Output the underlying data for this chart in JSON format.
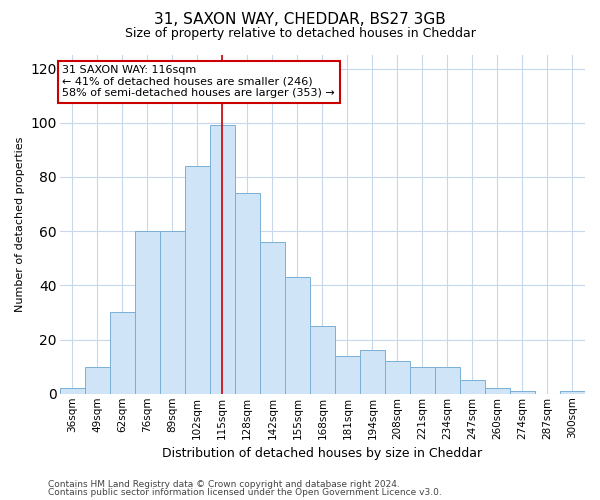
{
  "title1": "31, SAXON WAY, CHEDDAR, BS27 3GB",
  "title2": "Size of property relative to detached houses in Cheddar",
  "xlabel": "Distribution of detached houses by size in Cheddar",
  "ylabel": "Number of detached properties",
  "categories": [
    "36sqm",
    "49sqm",
    "62sqm",
    "76sqm",
    "89sqm",
    "102sqm",
    "115sqm",
    "128sqm",
    "142sqm",
    "155sqm",
    "168sqm",
    "181sqm",
    "194sqm",
    "208sqm",
    "221sqm",
    "234sqm",
    "247sqm",
    "260sqm",
    "274sqm",
    "287sqm",
    "300sqm"
  ],
  "values": [
    2,
    10,
    30,
    60,
    60,
    84,
    99,
    74,
    56,
    43,
    25,
    14,
    16,
    12,
    10,
    10,
    5,
    2,
    1,
    0,
    1
  ],
  "bar_color": "#d0e4f7",
  "bar_edge_color": "#7aafd4",
  "vline_x_idx": 6,
  "vline_color": "#cc0000",
  "annotation_line1": "31 SAXON WAY: 116sqm",
  "annotation_line2": "← 41% of detached houses are smaller (246)",
  "annotation_line3": "58% of semi-detached houses are larger (353) →",
  "annotation_box_color": "white",
  "annotation_box_edge": "#cc0000",
  "ylim": [
    0,
    125
  ],
  "yticks": [
    0,
    20,
    40,
    60,
    80,
    100,
    120
  ],
  "grid_color": "#c8d8ec",
  "background_color": "#ffffff",
  "plot_bg_color": "#ffffff",
  "footer1": "Contains HM Land Registry data © Crown copyright and database right 2024.",
  "footer2": "Contains public sector information licensed under the Open Government Licence v3.0.",
  "title1_fontsize": 11,
  "title2_fontsize": 9,
  "ylabel_fontsize": 8,
  "xlabel_fontsize": 9,
  "tick_fontsize": 7.5,
  "annotation_fontsize": 8,
  "footer_fontsize": 6.5
}
